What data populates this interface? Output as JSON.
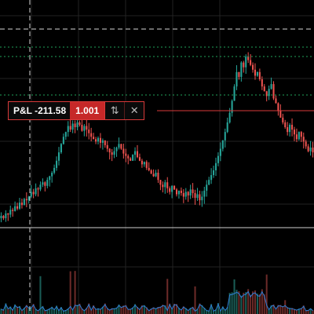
{
  "position": {
    "pl_label": "P&L -211.58",
    "quantity": "1.001",
    "reverse_icon": "reverse-arrows-icon",
    "close_icon": "close-icon"
  },
  "colors": {
    "background": "#000000",
    "grid": "#222222",
    "up": "#26a69a",
    "down": "#ef5350",
    "position_line": "#d93a3a",
    "order_lines": "#1fa25a",
    "crosshair": "#bdbdbd",
    "volume_ma": "#2f7fd8"
  },
  "chart_data": {
    "type": "line",
    "title": "",
    "xlabel": "",
    "ylabel": "",
    "series": [
      {
        "values": [
          22,
          20,
          24,
          23,
          27,
          26,
          30,
          28,
          33,
          31,
          36,
          35,
          38,
          42,
          40,
          45,
          44,
          48,
          50,
          47,
          52,
          55,
          58,
          62,
          68,
          75,
          82,
          88,
          92,
          97,
          94,
          99,
          96,
          100,
          98,
          93,
          97,
          94,
          91,
          88,
          86,
          84,
          87,
          83,
          85,
          81,
          78,
          75,
          73,
          76,
          79,
          82,
          78,
          74,
          72,
          70,
          68,
          73,
          76,
          71,
          68,
          65,
          67,
          62,
          60,
          57,
          55,
          58,
          52,
          48,
          46,
          50,
          45,
          42,
          47,
          44,
          40,
          43,
          41,
          38,
          42,
          39,
          44,
          41,
          37,
          40,
          35,
          38,
          43,
          48,
          52,
          56,
          60,
          66,
          72,
          78,
          85,
          92,
          100,
          108,
          118,
          130,
          142,
          138,
          150,
          146,
          155,
          152,
          148,
          144,
          139,
          142,
          136,
          130,
          126,
          122,
          128,
          132,
          120,
          116,
          110,
          104,
          100,
          96,
          92,
          98,
          94,
          90,
          86,
          92,
          88,
          84,
          80,
          76,
          79,
          75
        ]
      }
    ]
  }
}
